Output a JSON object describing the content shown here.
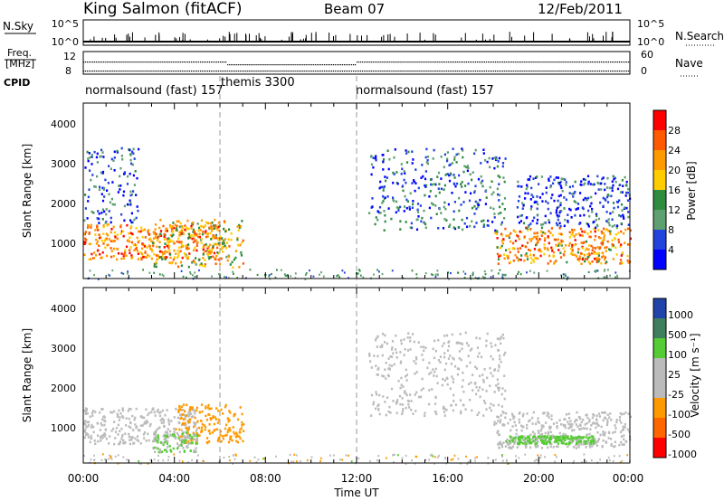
{
  "header": {
    "station": "King Salmon (fitACF)",
    "beam": "Beam 07",
    "date": "12/Feb/2011"
  },
  "top_panels": {
    "nsky_label": "N.Sky",
    "nsky_ticks": [
      "10^5",
      "10^0"
    ],
    "nsky_right_ticks": [
      "10^5",
      "10^0"
    ],
    "nsearch_label": "N.Search",
    "freq_label_line1": "Freq.",
    "freq_label_line2": "[MHz]",
    "freq_ticks": [
      "12",
      "8"
    ],
    "nave_ticks": [
      "60",
      "0"
    ],
    "nave_label": "Nave",
    "cpid_label": "CPID"
  },
  "cpid_segments": [
    {
      "label": "normalsound (fast) 157",
      "start_hour": 0,
      "end_hour": 6
    },
    {
      "label": "themis 3300",
      "start_hour": 6,
      "end_hour": 12
    },
    {
      "label": "normalsound (fast) 157",
      "start_hour": 12,
      "end_hour": 24
    }
  ],
  "power_panel": {
    "ylabel": "Slant Range [km]",
    "yticks": [
      "4000",
      "3000",
      "2000",
      "1000"
    ],
    "colorbar_label": "Power [dB]",
    "colorbar_ticks": [
      "28",
      "24",
      "20",
      "16",
      "12",
      "8",
      "4"
    ],
    "colors": [
      "#ff0000",
      "#ff5a00",
      "#ff9900",
      "#ffcc00",
      "#2f8c3f",
      "#5fa070",
      "#2244dd",
      "#0000ff"
    ]
  },
  "velocity_panel": {
    "ylabel": "Slant Range [km]",
    "yticks": [
      "4000",
      "3000",
      "2000",
      "1000"
    ],
    "colorbar_label": "Velocity [m s⁻¹]",
    "colorbar_ticks": [
      "1000",
      "500",
      "100",
      "25",
      "-25",
      "-100",
      "-500",
      "-1000"
    ],
    "colors": [
      "#2244aa",
      "#3f7f5f",
      "#55cc33",
      "#bbbbbb",
      "#bbbbbb",
      "#ff9900",
      "#ff6600",
      "#ff0000"
    ]
  },
  "xaxis": {
    "ticks": [
      "00:00",
      "04:00",
      "08:00",
      "12:00",
      "16:00",
      "20:00",
      "00:00"
    ],
    "label": "Time UT"
  },
  "chart_data": {
    "type": "heatmap",
    "title": "King Salmon (fitACF) Beam 07 12/Feb/2011",
    "xlabel": "Time UT",
    "ylabel": "Slant Range [km]",
    "xlim_hours": [
      0,
      24
    ],
    "ylim_km": [
      200,
      4600
    ],
    "grid": false,
    "power_scale_db": [
      0,
      30
    ],
    "velocity_scale_ms": [
      -1000,
      1000
    ],
    "power_echo_regions": [
      {
        "t_start": 0.0,
        "t_end": 6.2,
        "range_start": 700,
        "range_end": 1600,
        "power_db": 24
      },
      {
        "t_start": 0.0,
        "t_end": 2.4,
        "range_start": 1600,
        "range_end": 3500,
        "power_db": 6
      },
      {
        "t_start": 3.0,
        "t_end": 7.0,
        "range_start": 500,
        "range_end": 1700,
        "power_db": 18
      },
      {
        "t_start": 12.5,
        "t_end": 18.5,
        "range_start": 1400,
        "range_end": 3500,
        "power_db": 8
      },
      {
        "t_start": 18.0,
        "t_end": 24.0,
        "range_start": 600,
        "range_end": 1500,
        "power_db": 22
      },
      {
        "t_start": 19.0,
        "t_end": 24.0,
        "range_start": 1500,
        "range_end": 2800,
        "power_db": 6
      }
    ],
    "velocity_echo_regions": [
      {
        "t_start": 0.0,
        "t_end": 5.0,
        "range_start": 700,
        "range_end": 1600,
        "velocity_ms": 0
      },
      {
        "t_start": 4.0,
        "t_end": 7.0,
        "range_start": 700,
        "range_end": 1700,
        "velocity_ms": -200
      },
      {
        "t_start": 3.0,
        "t_end": 5.0,
        "range_start": 500,
        "range_end": 1000,
        "velocity_ms": 120
      },
      {
        "t_start": 12.5,
        "t_end": 18.5,
        "range_start": 1400,
        "range_end": 3500,
        "velocity_ms": 0
      },
      {
        "t_start": 18.0,
        "t_end": 24.0,
        "range_start": 600,
        "range_end": 1500,
        "velocity_ms": 0
      },
      {
        "t_start": 18.5,
        "t_end": 22.5,
        "range_start": 700,
        "range_end": 900,
        "velocity_ms": 150
      }
    ]
  }
}
